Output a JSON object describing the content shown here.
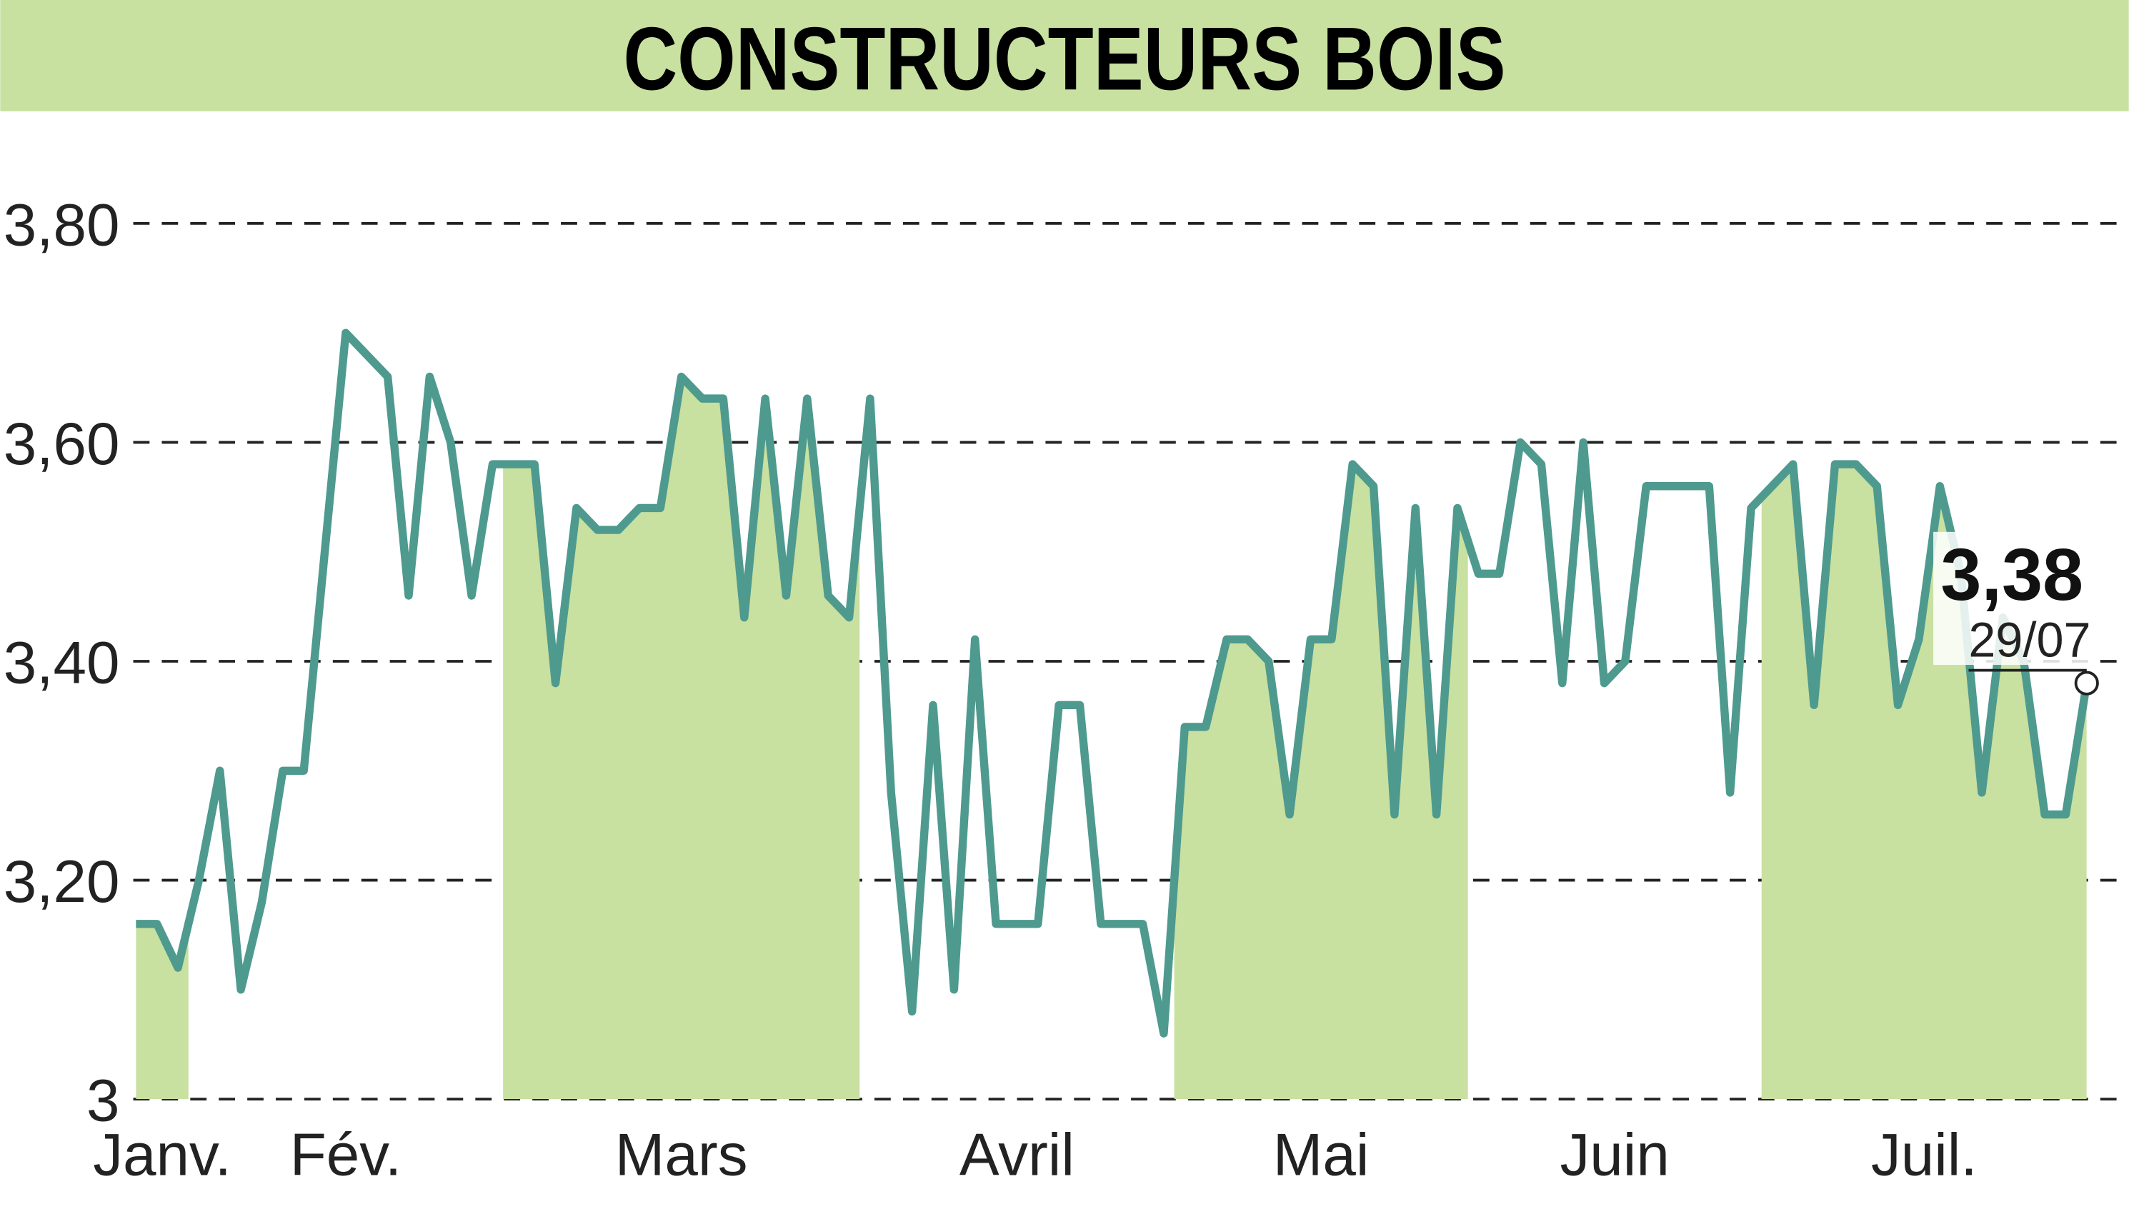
{
  "chart_data": {
    "type": "line",
    "title": "CONSTRUCTEURS BOIS",
    "color": "#4e9a8f",
    "fill_color": "#c8e0a0",
    "grid": true,
    "ylim": [
      3,
      3.9
    ],
    "yticks": [
      3,
      {
        "value": 3.2,
        "label": "3,20"
      },
      {
        "value": 3.4,
        "label": "3,40"
      },
      {
        "value": 3.6,
        "label": "3,60"
      },
      {
        "value": 3.8,
        "label": "3,80"
      }
    ],
    "categories": [
      "Janv.",
      null,
      null,
      "Fév.",
      null,
      null,
      null,
      null,
      null,
      null,
      null,
      null,
      null,
      null,
      null,
      null,
      null,
      null,
      "Mars",
      null,
      null,
      null,
      null,
      null,
      null,
      null,
      null,
      null,
      null,
      null,
      null,
      null,
      null,
      null,
      null,
      "Avril",
      null,
      null,
      null,
      null,
      null,
      null,
      null,
      null,
      null,
      null,
      null,
      null,
      null,
      null,
      "Mai",
      null,
      null,
      null,
      null,
      null,
      null,
      null,
      null,
      null,
      null,
      null,
      null,
      null,
      "Juin",
      null,
      null,
      null,
      null,
      null,
      null,
      null,
      null,
      null,
      null,
      null,
      null,
      null,
      "Juil.",
      null,
      null,
      null,
      null,
      null,
      null,
      null,
      null,
      null,
      null,
      null,
      null,
      null,
      null,
      null
    ],
    "values": [
      3.16,
      3.16,
      3.12,
      3.2,
      3.3,
      3.1,
      3.18,
      3.3,
      3.3,
      3.5,
      3.7,
      3.68,
      3.66,
      3.46,
      3.66,
      3.6,
      3.46,
      3.58,
      3.58,
      3.58,
      3.38,
      3.54,
      3.52,
      3.52,
      3.54,
      3.54,
      3.66,
      3.64,
      3.64,
      3.44,
      3.64,
      3.46,
      3.64,
      3.46,
      3.44,
      3.64,
      3.28,
      3.08,
      3.36,
      3.1,
      3.42,
      3.16,
      3.16,
      3.16,
      3.36,
      3.36,
      3.16,
      3.16,
      3.16,
      3.06,
      3.34,
      3.34,
      3.42,
      3.42,
      3.4,
      3.26,
      3.42,
      3.42,
      3.58,
      3.56,
      3.26,
      3.54,
      3.26,
      3.54,
      3.48,
      3.48,
      3.6,
      3.58,
      3.38,
      3.6,
      3.38,
      3.4,
      3.56,
      3.56,
      3.56,
      3.56,
      3.28,
      3.54,
      3.56,
      3.58,
      3.36,
      3.58,
      3.58,
      3.56,
      3.36,
      3.42,
      3.56,
      3.48,
      3.28,
      3.44,
      3.4,
      3.26,
      3.26,
      3.38
    ],
    "value_labels": [
      null,
      null,
      null,
      null,
      null,
      null,
      null,
      null,
      null,
      null,
      null,
      null,
      null,
      null,
      null,
      null,
      null,
      null,
      null,
      null,
      null,
      null,
      null,
      null,
      null,
      null,
      null,
      null,
      null,
      null,
      null,
      null,
      null,
      null,
      null,
      null,
      null,
      null,
      null,
      null,
      null,
      null,
      null,
      null,
      null,
      null,
      null,
      null,
      null,
      null,
      null,
      null,
      null,
      null,
      null,
      null,
      null,
      null,
      null,
      null,
      null,
      null,
      null,
      null,
      null,
      null,
      null,
      null,
      null,
      null,
      null,
      null,
      null,
      null,
      null,
      null,
      null,
      null,
      null,
      null,
      null,
      null,
      null,
      null,
      null,
      null,
      null,
      null,
      null,
      null,
      null,
      null,
      null,
      "3,38"
    ],
    "last_date": "29/07"
  }
}
